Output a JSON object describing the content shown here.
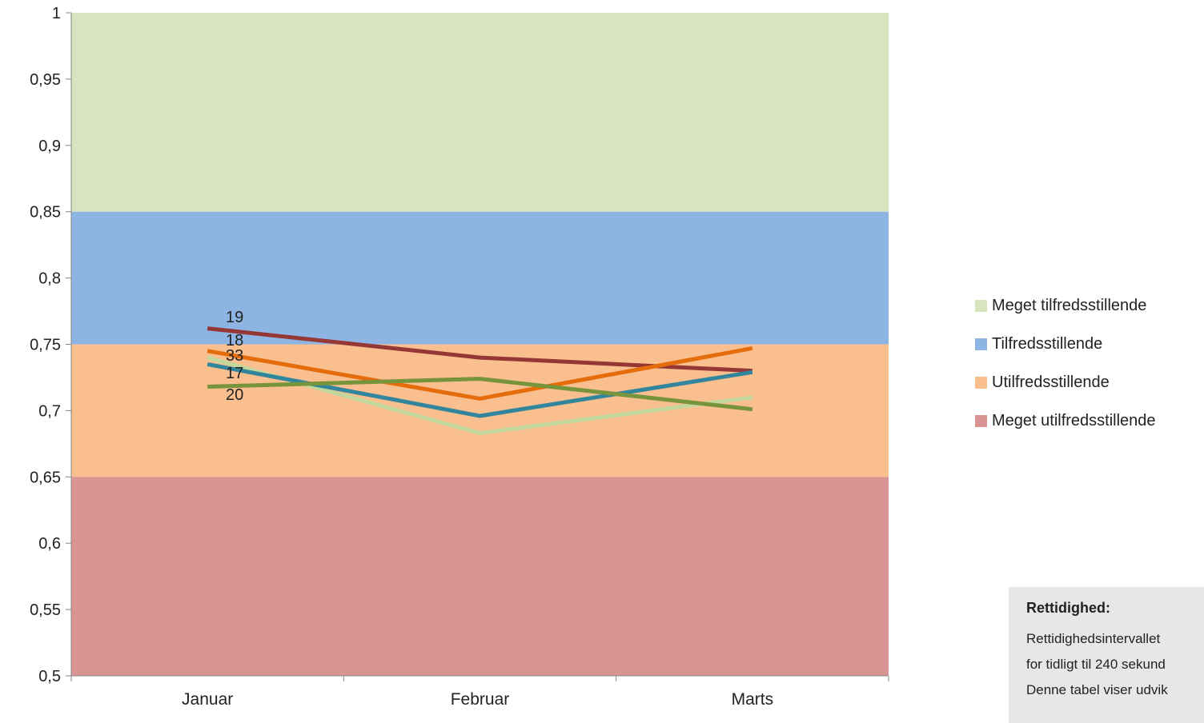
{
  "chart_data": {
    "type": "line",
    "categories": [
      "Januar",
      "Februar",
      "Marts"
    ],
    "ylim": [
      0.5,
      1
    ],
    "yticks": [
      "0,5",
      "0,55",
      "0,6",
      "0,65",
      "0,7",
      "0,75",
      "0,8",
      "0,85",
      "0,9",
      "0,95",
      "1"
    ],
    "bands": [
      {
        "name": "Meget tilfredsstillende",
        "from": 0.85,
        "to": 1.0,
        "color": "#d7e4bd"
      },
      {
        "name": "Tilfredsstillende",
        "from": 0.75,
        "to": 0.85,
        "color": "#8eb4e3"
      },
      {
        "name": "Utilfredsstillende",
        "from": 0.65,
        "to": 0.75,
        "color": "#f9bf8f"
      },
      {
        "name": "Meget utilfredsstillende",
        "from": 0.5,
        "to": 0.65,
        "color": "#d99594"
      }
    ],
    "series": [
      {
        "label": "19",
        "color": "#953735",
        "values": [
          0.762,
          0.74,
          0.73
        ]
      },
      {
        "label": "18",
        "color": "#e46c0a",
        "values": [
          0.745,
          0.709,
          0.747
        ]
      },
      {
        "label": "33",
        "color": "#c3d69b",
        "values": [
          0.74,
          0.683,
          0.71
        ]
      },
      {
        "label": "17",
        "color": "#31859c",
        "values": [
          0.735,
          0.696,
          0.729
        ]
      },
      {
        "label": "20",
        "color": "#77933c",
        "values": [
          0.718,
          0.724,
          0.701
        ]
      }
    ]
  },
  "legend": {
    "items": [
      {
        "label": "Meget tilfredsstillende",
        "color": "#d7e4bd"
      },
      {
        "label": "Tilfredsstillende",
        "color": "#8eb4e3"
      },
      {
        "label": "Utilfredsstillende",
        "color": "#f9bf8f"
      },
      {
        "label": "Meget utilfredsstillende",
        "color": "#d99594"
      }
    ]
  },
  "info_box": {
    "title": "Rettidighed:",
    "line1": "Rettidighedsintervallet",
    "line2": "for tidligt til 240 sekund",
    "line3": "Denne tabel viser udvik"
  }
}
